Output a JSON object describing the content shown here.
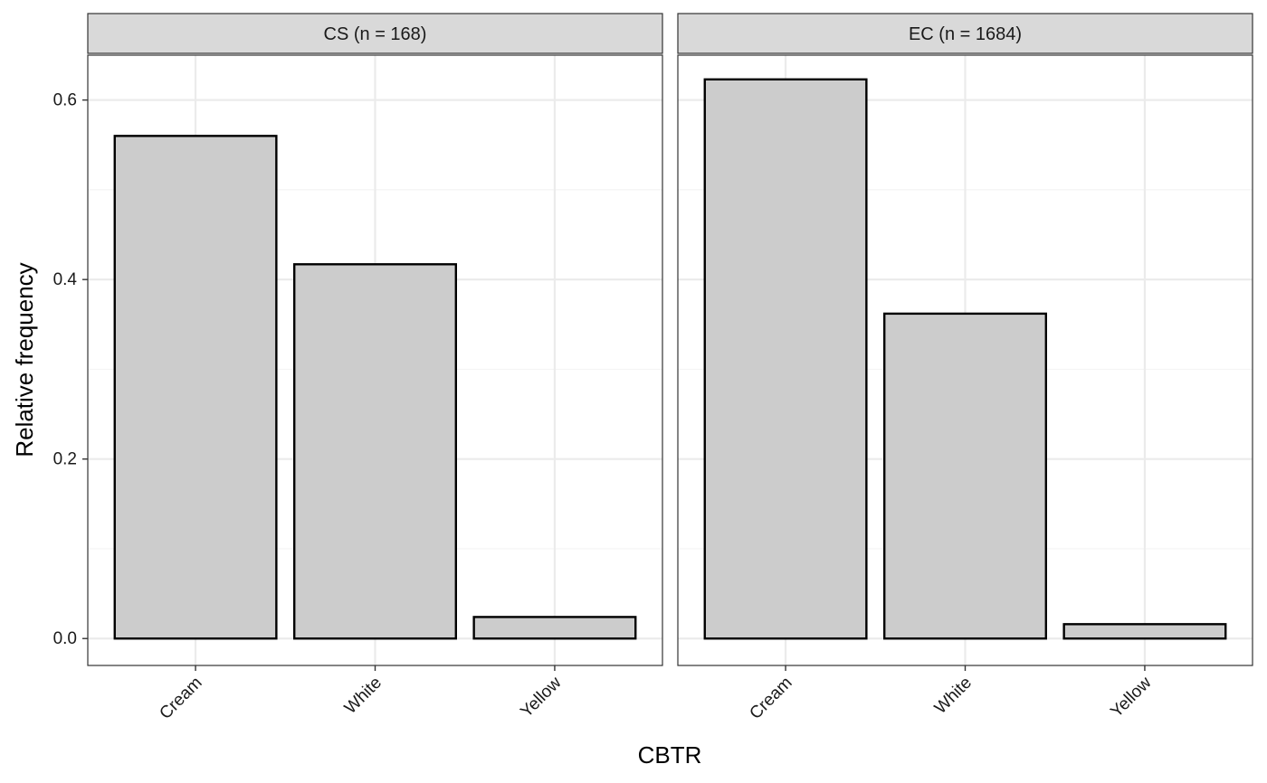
{
  "chart_data": {
    "type": "bar",
    "xlabel": "CBTR",
    "ylabel": "Relative frequency",
    "ylim": [
      -0.03,
      0.65
    ],
    "yticks": [
      0.0,
      0.2,
      0.4,
      0.6
    ],
    "ytick_labels": [
      "0.0",
      "0.2",
      "0.4",
      "0.6"
    ],
    "categories": [
      "Cream",
      "White",
      "Yellow"
    ],
    "grid": true,
    "panels": [
      {
        "label": "CS (n = 168)",
        "values": [
          0.56,
          0.417,
          0.024
        ]
      },
      {
        "label": "EC (n = 1684)",
        "values": [
          0.623,
          0.362,
          0.016
        ]
      }
    ]
  },
  "colors": {
    "bar_fill": "#cccccc",
    "bar_stroke": "#000000",
    "strip_fill": "#d9d9d9",
    "panel_border": "#333333",
    "grid_major": "#ebebeb",
    "grid_minor": "#f4f4f4",
    "text": "#1a1a1a"
  }
}
